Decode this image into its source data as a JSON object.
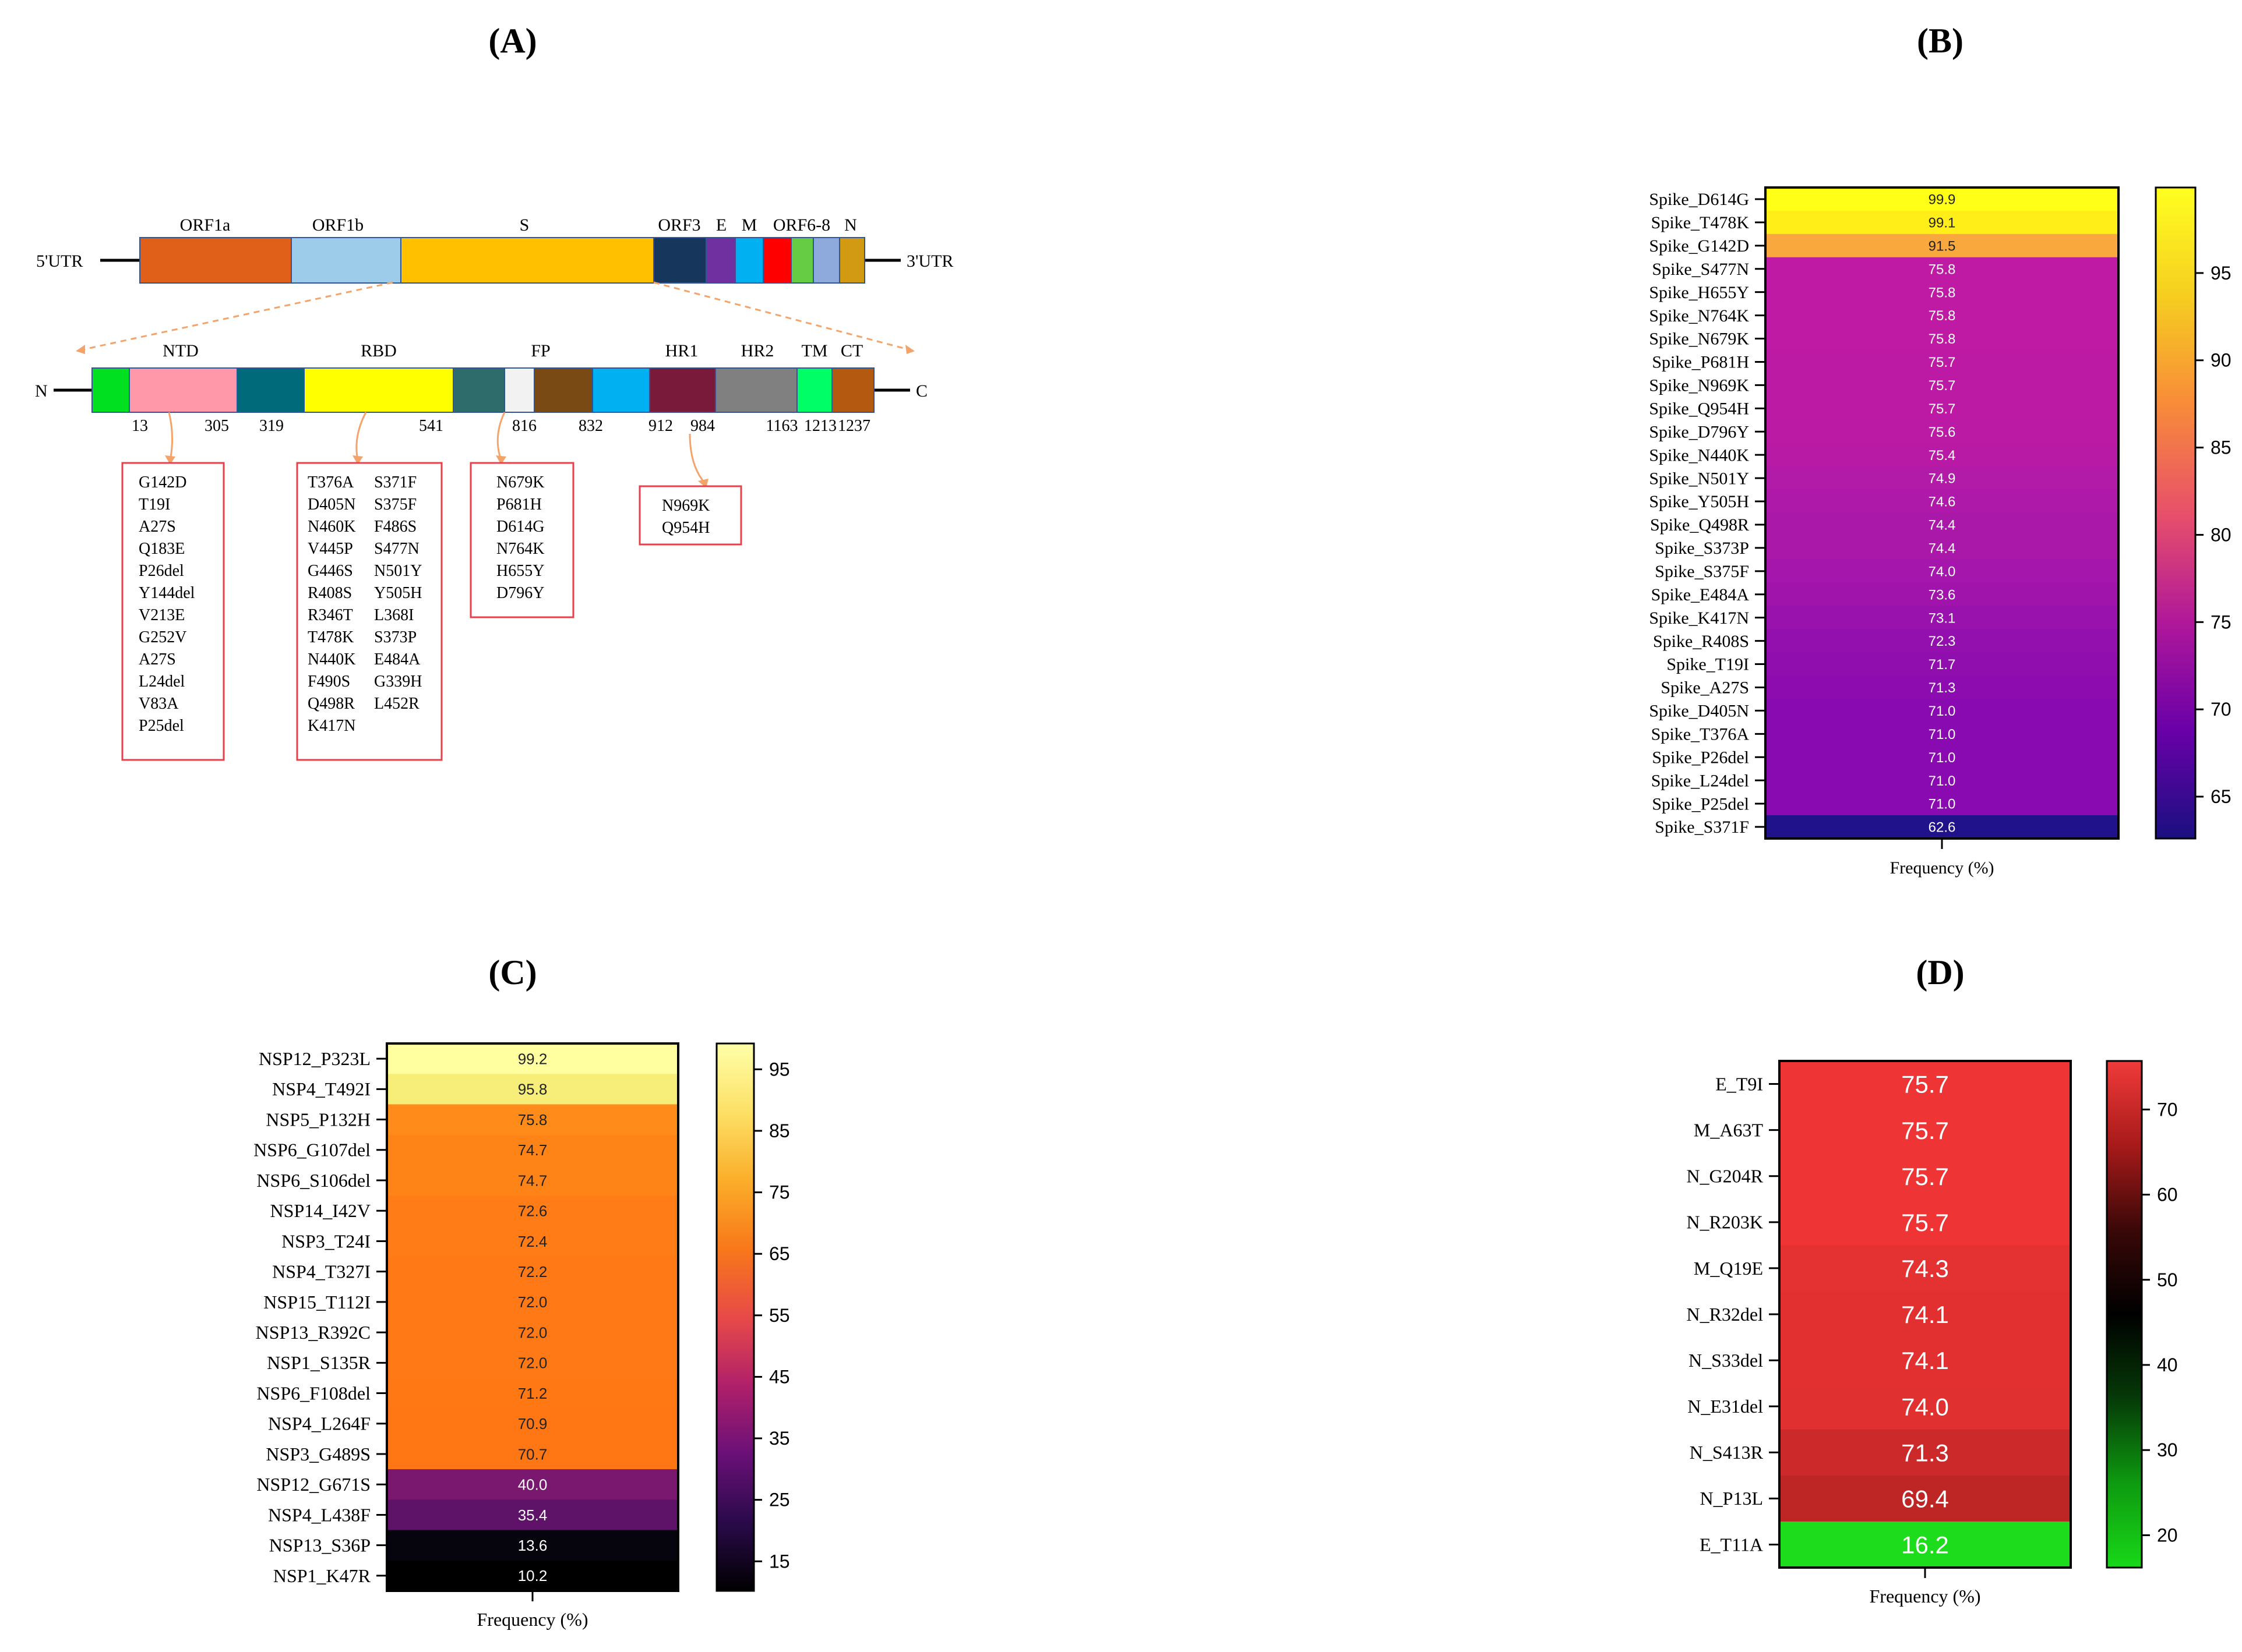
{
  "panel_labels": [
    "(A)",
    "(B)",
    "(C)",
    "(D)"
  ],
  "genome": {
    "left_end": "5'UTR",
    "right_end": "3'UTR",
    "segments": [
      {
        "label": "ORF1a",
        "color": "#E0601A"
      },
      {
        "label": "ORF1b",
        "color": "#9DCBEA"
      },
      {
        "label": "S",
        "color": "#FFC000"
      },
      {
        "label": "ORF3",
        "color": "#16365C"
      },
      {
        "label": "E",
        "color": "#7030A0"
      },
      {
        "label": "M",
        "color": "#00B0F0"
      },
      {
        "label": "",
        "color": "#FF0000"
      },
      {
        "label": "ORF6-8",
        "color": "#66CC44"
      },
      {
        "label": "",
        "color": "#8EA9DB"
      },
      {
        "label": "N",
        "color": "#D29A12"
      }
    ]
  },
  "spike": {
    "left_end": "N",
    "right_end": "C",
    "segments": [
      {
        "color": "#00E020"
      },
      {
        "color": "#FF99AA"
      },
      {
        "color": "#00697A"
      },
      {
        "color": "#FFFF00"
      },
      {
        "color": "#2E6B6B"
      },
      {
        "color": "#F2F2F2"
      },
      {
        "color": "#7A4A14"
      },
      {
        "color": "#00B0F0"
      },
      {
        "color": "#7A1A3A"
      },
      {
        "color": "#808080"
      },
      {
        "color": "#00FF66"
      },
      {
        "color": "#B35A10"
      }
    ],
    "domain_labels": [
      "NTD",
      "RBD",
      "FP",
      "HR1",
      "HR2",
      "TM",
      "CT"
    ],
    "positions": [
      "13",
      "305",
      "319",
      "541",
      "816",
      "832",
      "912",
      "984",
      "1163",
      "1213",
      "1237"
    ]
  },
  "mutation_boxes": [
    {
      "region": "NTD",
      "columns": [
        [
          "G142D",
          "T19I",
          "A27S",
          "Q183E",
          "P26del",
          "Y144del",
          "V213E",
          "G252V",
          "A27S",
          "L24del",
          "V83A",
          "P25del"
        ]
      ]
    },
    {
      "region": "RBD",
      "columns": [
        [
          "T376A",
          "D405N",
          "N460K",
          "V445P",
          "G446S",
          "R408S",
          "R346T",
          "T478K",
          "N440K",
          "F490S",
          "Q498R",
          "K417N"
        ],
        [
          "S371F",
          "S375F",
          "F486S",
          "S477N",
          "N501Y",
          "Y505H",
          "L368I",
          "S373P",
          "E484A",
          "G339H",
          "L452R"
        ]
      ]
    },
    {
      "region": "FP",
      "columns": [
        [
          "N679K",
          "P681H",
          "D614G",
          "N764K",
          "H655Y",
          "D796Y"
        ]
      ]
    },
    {
      "region": "HR1",
      "columns": [
        [
          "N969K",
          "Q954H"
        ]
      ]
    }
  ],
  "chart_data": [
    {
      "panel": "B",
      "type": "heatmap",
      "xlabel": "Frequency (%)",
      "categories": [
        "Spike_D614G",
        "Spike_T478K",
        "Spike_G142D",
        "Spike_S477N",
        "Spike_H655Y",
        "Spike_N764K",
        "Spike_N679K",
        "Spike_P681H",
        "Spike_N969K",
        "Spike_Q954H",
        "Spike_D796Y",
        "Spike_N440K",
        "Spike_N501Y",
        "Spike_Y505H",
        "Spike_Q498R",
        "Spike_S373P",
        "Spike_S375F",
        "Spike_E484A",
        "Spike_K417N",
        "Spike_R408S",
        "Spike_T19I",
        "Spike_A27S",
        "Spike_D405N",
        "Spike_T376A",
        "Spike_P26del",
        "Spike_L24del",
        "Spike_P25del",
        "Spike_S371F"
      ],
      "values": [
        99.9,
        99.1,
        91.5,
        75.8,
        75.8,
        75.8,
        75.8,
        75.7,
        75.7,
        75.7,
        75.6,
        75.4,
        74.9,
        74.6,
        74.4,
        74.4,
        74.0,
        73.6,
        73.1,
        72.3,
        71.7,
        71.3,
        71.0,
        71.0,
        71.0,
        71.0,
        71.0,
        62.6
      ],
      "value_labels": [
        "99.9",
        "99.1",
        "91.5",
        "75.8",
        "75.8",
        "75.8",
        "75.8",
        "75.7",
        "75.7",
        "75.7",
        "75.6",
        "75.4",
        "74.9",
        "74.6",
        "74.4",
        "74.4",
        "74.0",
        "73.6",
        "73.1",
        "72.3",
        "71.7",
        "71.3",
        "71.0",
        "71.0",
        "71.0",
        "71.0",
        "71.0",
        "62.6"
      ],
      "colorbar": {
        "range": [
          62.6,
          99.9
        ],
        "ticks": [
          65,
          70,
          75,
          80,
          85,
          90,
          95
        ],
        "stops": [
          "#1A1080",
          "#6A00A8",
          "#B0189A",
          "#E8506A",
          "#F88B3A",
          "#F6CE20",
          "#FFFF20"
        ]
      },
      "cell_colors": [
        "#FFFF18",
        "#FFEE18",
        "#F8A83C",
        "#BE1AA4",
        "#BE1AA4",
        "#BE1AA4",
        "#BE1AA4",
        "#BC1AA4",
        "#BC1AA4",
        "#BC1AA4",
        "#BA1AA4",
        "#B81AA6",
        "#B21AA8",
        "#AE19AA",
        "#AA18AA",
        "#AA18AA",
        "#A416AC",
        "#A014AC",
        "#9A12AE",
        "#9410AE",
        "#900EAE",
        "#8C0CB0",
        "#880AB0",
        "#880AB0",
        "#880AB0",
        "#880AB0",
        "#880AB0",
        "#20128A"
      ]
    },
    {
      "panel": "C",
      "type": "heatmap",
      "xlabel": "Frequency (%)",
      "categories": [
        "NSP12_P323L",
        "NSP4_T492I",
        "NSP5_P132H",
        "NSP6_G107del",
        "NSP6_S106del",
        "NSP14_I42V",
        "NSP3_T24I",
        "NSP4_T327I",
        "NSP15_T112I",
        "NSP13_R392C",
        "NSP1_S135R",
        "NSP6_F108del",
        "NSP4_L264F",
        "NSP3_G489S",
        "NSP12_G671S",
        "NSP4_L438F",
        "NSP13_S36P",
        "NSP1_K47R"
      ],
      "values": [
        99.2,
        95.8,
        75.8,
        74.7,
        74.7,
        72.6,
        72.4,
        72.2,
        72.0,
        72.0,
        72.0,
        71.2,
        70.9,
        70.7,
        40.0,
        35.4,
        13.6,
        10.2
      ],
      "value_labels": [
        "99.2",
        "95.8",
        "75.8",
        "74.7",
        "74.7",
        "72.6",
        "72.4",
        "72.2",
        "72.0",
        "72.0",
        "72.0",
        "71.2",
        "70.9",
        "70.7",
        "40.0",
        "35.4",
        "13.6",
        "10.2"
      ],
      "colorbar": {
        "range": [
          10.2,
          99.2
        ],
        "ticks": [
          15,
          25,
          35,
          45,
          55,
          65,
          75,
          85,
          95
        ],
        "stops": [
          "#000000",
          "#2A0A4A",
          "#6A1078",
          "#B0206A",
          "#E84A48",
          "#F8781A",
          "#FBAE2A",
          "#FCE066",
          "#FFFFA8"
        ]
      },
      "cell_colors": [
        "#FFFFA0",
        "#F6EE78",
        "#FF8C1A",
        "#FF8418",
        "#FF8418",
        "#FF7C16",
        "#FF7C16",
        "#FF7A16",
        "#FF7A16",
        "#FF7A16",
        "#FF7A16",
        "#FF7814",
        "#FF7614",
        "#FF7614",
        "#7A1870",
        "#5E1268",
        "#06040C",
        "#000000"
      ]
    },
    {
      "panel": "D",
      "type": "heatmap",
      "xlabel": "Frequency (%)",
      "categories": [
        "E_T9I",
        "M_A63T",
        "N_G204R",
        "N_R203K",
        "M_Q19E",
        "N_R32del",
        "N_S33del",
        "N_E31del",
        "N_S413R",
        "N_P13L",
        "E_T11A"
      ],
      "values": [
        75.7,
        75.7,
        75.7,
        75.7,
        74.3,
        74.1,
        74.1,
        74.0,
        71.3,
        69.4,
        16.2
      ],
      "value_labels": [
        "75.7",
        "75.7",
        "75.7",
        "75.7",
        "74.3",
        "74.1",
        "74.1",
        "74.0",
        "71.3",
        "69.4",
        "16.2"
      ],
      "colorbar": {
        "range": [
          16.2,
          75.7
        ],
        "ticks": [
          20,
          30,
          40,
          50,
          60,
          70
        ],
        "stops": [
          "#18D818",
          "#0E9A10",
          "#063A08",
          "#000000",
          "#3A0808",
          "#A81A1A",
          "#F03A3A"
        ]
      },
      "cell_colors": [
        "#EE3434",
        "#EE3434",
        "#EE3434",
        "#EE3434",
        "#E43232",
        "#E23030",
        "#E23030",
        "#E03030",
        "#CC2A2A",
        "#BE2626",
        "#1CDC1C"
      ]
    }
  ]
}
